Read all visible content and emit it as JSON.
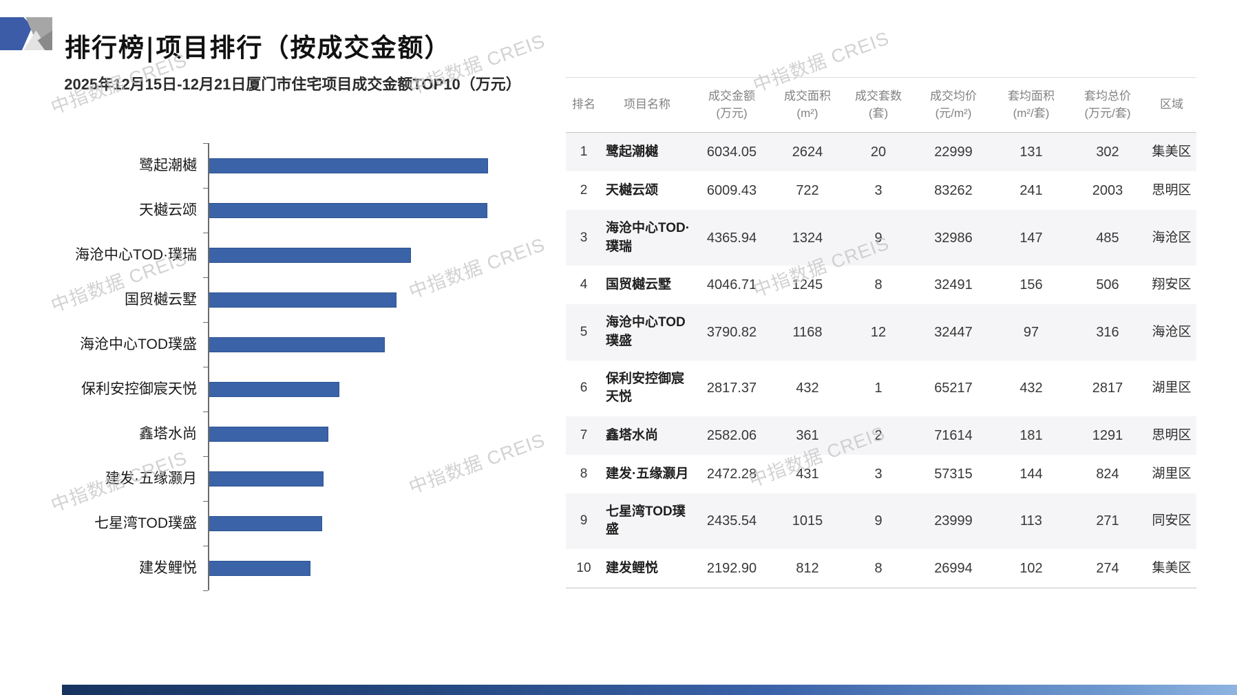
{
  "page": {
    "title": "排行榜|项目排行（按成交金额）",
    "watermark": "中指数据 CREIS"
  },
  "chart_data": {
    "type": "bar",
    "orientation": "horizontal",
    "title": "2025年12月15日-12月21日厦门市住宅项目成交金额TOP10（万元）",
    "categories": [
      "鹭起潮樾",
      "天樾云颂",
      "海沧中心TOD·璞瑞",
      "国贸樾云墅",
      "海沧中心TOD璞盛",
      "保利安控御宸天悦",
      "鑫塔水尚",
      "建发·五缘灏月",
      "七星湾TOD璞盛",
      "建发鲤悦"
    ],
    "values": [
      6034.05,
      6009.43,
      4365.94,
      4046.71,
      3790.82,
      2817.37,
      2582.06,
      2472.28,
      2435.54,
      2192.9
    ],
    "xlabel": "",
    "ylabel": "",
    "xlim": [
      0,
      7000
    ],
    "value_axis_tick_labels": "hidden",
    "grid": false,
    "legend": "none",
    "bar_color": "#3a63a8"
  },
  "table": {
    "columns": [
      {
        "label": "排名",
        "unit": ""
      },
      {
        "label": "项目名称",
        "unit": ""
      },
      {
        "label": "成交金额",
        "unit": "(万元)"
      },
      {
        "label": "成交面积",
        "unit": "(m²)"
      },
      {
        "label": "成交套数",
        "unit": "(套)"
      },
      {
        "label": "成交均价",
        "unit": "(元/m²)"
      },
      {
        "label": "套均面积",
        "unit": "(m²/套)"
      },
      {
        "label": "套均总价",
        "unit": "(万元/套)"
      },
      {
        "label": "区域",
        "unit": ""
      }
    ],
    "rows": [
      {
        "rank": "1",
        "name": "鹭起潮樾",
        "amount": "6034.05",
        "area": "2624",
        "units": "20",
        "avg_price": "22999",
        "avg_area": "131",
        "avg_total": "302",
        "district": "集美区"
      },
      {
        "rank": "2",
        "name": "天樾云颂",
        "amount": "6009.43",
        "area": "722",
        "units": "3",
        "avg_price": "83262",
        "avg_area": "241",
        "avg_total": "2003",
        "district": "思明区"
      },
      {
        "rank": "3",
        "name": "海沧中心TOD·璞瑞",
        "amount": "4365.94",
        "area": "1324",
        "units": "9",
        "avg_price": "32986",
        "avg_area": "147",
        "avg_total": "485",
        "district": "海沧区"
      },
      {
        "rank": "4",
        "name": "国贸樾云墅",
        "amount": "4046.71",
        "area": "1245",
        "units": "8",
        "avg_price": "32491",
        "avg_area": "156",
        "avg_total": "506",
        "district": "翔安区"
      },
      {
        "rank": "5",
        "name": "海沧中心TOD璞盛",
        "amount": "3790.82",
        "area": "1168",
        "units": "12",
        "avg_price": "32447",
        "avg_area": "97",
        "avg_total": "316",
        "district": "海沧区"
      },
      {
        "rank": "6",
        "name": "保利安控御宸天悦",
        "amount": "2817.37",
        "area": "432",
        "units": "1",
        "avg_price": "65217",
        "avg_area": "432",
        "avg_total": "2817",
        "district": "湖里区"
      },
      {
        "rank": "7",
        "name": "鑫塔水尚",
        "amount": "2582.06",
        "area": "361",
        "units": "2",
        "avg_price": "71614",
        "avg_area": "181",
        "avg_total": "1291",
        "district": "思明区"
      },
      {
        "rank": "8",
        "name": "建发·五缘灏月",
        "amount": "2472.28",
        "area": "431",
        "units": "3",
        "avg_price": "57315",
        "avg_area": "144",
        "avg_total": "824",
        "district": "湖里区"
      },
      {
        "rank": "9",
        "name": "七星湾TOD璞盛",
        "amount": "2435.54",
        "area": "1015",
        "units": "9",
        "avg_price": "23999",
        "avg_area": "113",
        "avg_total": "271",
        "district": "同安区"
      },
      {
        "rank": "10",
        "name": "建发鲤悦",
        "amount": "2192.90",
        "area": "812",
        "units": "8",
        "avg_price": "26994",
        "avg_area": "102",
        "avg_total": "274",
        "district": "集美区"
      }
    ]
  }
}
